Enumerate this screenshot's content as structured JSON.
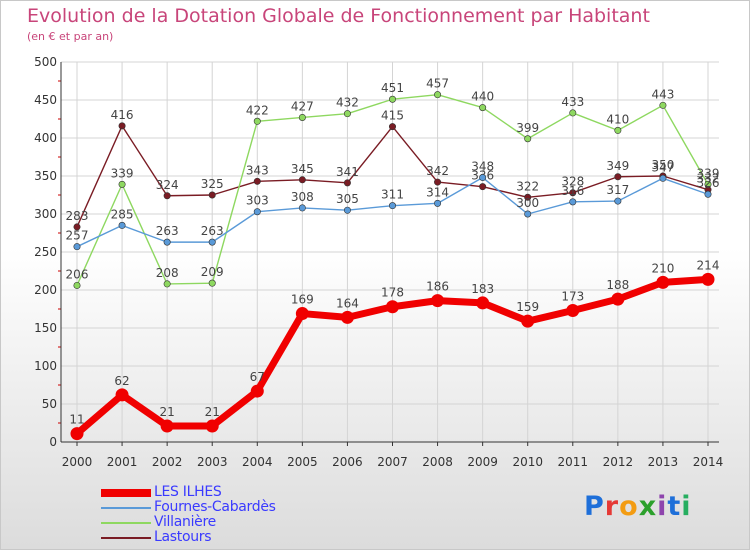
{
  "title": "Evolution de la Dotation Globale de Fonctionnement par Habitant",
  "subtitle": "(en € et par an)",
  "logo": {
    "text": "Proxiti",
    "colors": [
      "#1e6fd9",
      "#e53935",
      "#f39c12",
      "#2ca02c",
      "#8e44ad",
      "#1e6fd9",
      "#27ae60"
    ]
  },
  "chart_data": {
    "type": "line",
    "x": [
      "2000",
      "2001",
      "2002",
      "2003",
      "2004",
      "2005",
      "2006",
      "2007",
      "2008",
      "2009",
      "2010",
      "2011",
      "2012",
      "2013",
      "2014"
    ],
    "ylim": [
      0,
      500
    ],
    "yticks": [
      "0",
      "50",
      "100",
      "150",
      "200",
      "250",
      "300",
      "350",
      "400",
      "450",
      "500"
    ],
    "grid": true,
    "legend_position": "bottom-left",
    "series": [
      {
        "name": "Lastours",
        "color": "#7a1c24",
        "values": [
          283,
          416,
          324,
          325,
          343,
          345,
          341,
          415,
          342,
          336,
          322,
          328,
          349,
          350,
          332
        ],
        "labels": [
          "283",
          "416",
          "324",
          "325",
          "343",
          "345",
          "341",
          "415",
          "342",
          "336",
          "322",
          "328",
          "349",
          "350",
          "332"
        ]
      },
      {
        "name": "Villanière",
        "color": "#8ed860",
        "values": [
          206,
          339,
          208,
          209,
          422,
          427,
          432,
          451,
          457,
          440,
          399,
          433,
          410,
          443,
          339
        ],
        "labels": [
          "206",
          "339",
          "208",
          "209",
          "422",
          "427",
          "432",
          "451",
          "457",
          "440",
          "399",
          "433",
          "410",
          "443",
          "339"
        ]
      },
      {
        "name": "Fournes-Cabardès",
        "color": "#5a9ad8",
        "values": [
          257,
          285,
          263,
          263,
          303,
          308,
          305,
          311,
          314,
          348,
          300,
          316,
          317,
          347,
          326
        ],
        "labels": [
          "257",
          "285",
          "263",
          "263",
          "303",
          "308",
          "305",
          "311",
          "314",
          "348",
          "300",
          "316",
          "317",
          "347",
          "326"
        ]
      },
      {
        "name": "LES ILHES",
        "color": "#f00000",
        "values": [
          11,
          62,
          21,
          21,
          67,
          169,
          164,
          178,
          186,
          183,
          159,
          173,
          188,
          210,
          214
        ],
        "labels": [
          "11",
          "62",
          "21",
          "21",
          "67",
          "169",
          "164",
          "178",
          "186",
          "183",
          "159",
          "173",
          "188",
          "210",
          "214"
        ]
      }
    ],
    "legend_order": [
      "LES ILHES",
      "Fournes-Cabardès",
      "Villanière",
      "Lastours"
    ]
  }
}
